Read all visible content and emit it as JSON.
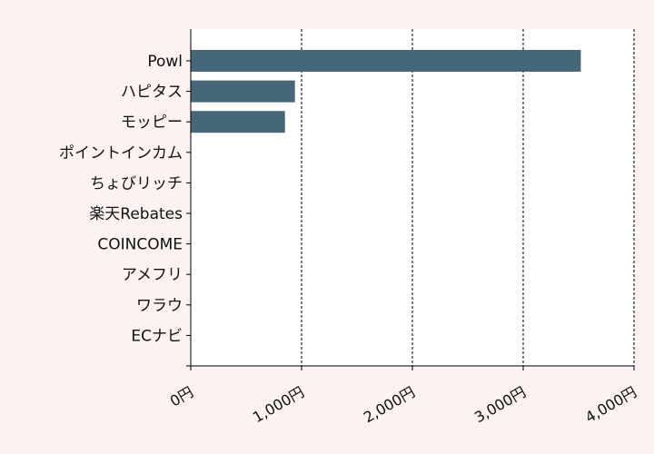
{
  "chart_data": {
    "type": "bar",
    "orientation": "horizontal",
    "categories": [
      "Powl",
      "ハピタス",
      "モッピー",
      "ポイントインカム",
      "ちょびリッチ",
      "楽天Rebates",
      "COINCOME",
      "アメフリ",
      "ワラウ",
      "ECナビ"
    ],
    "values": [
      3520,
      940,
      850,
      0,
      0,
      0,
      0,
      0,
      0,
      0
    ],
    "xlim": [
      0,
      4000
    ],
    "xticks": [
      0,
      1000,
      2000,
      3000,
      4000
    ],
    "xtick_labels": [
      "0円",
      "1,000円",
      "2,000円",
      "3,000円",
      "4,000円"
    ],
    "grid": "x-dashed",
    "bar_color": "#456779",
    "plot_background": "#ffffff",
    "page_background": "#fdf2f2",
    "title": "",
    "xlabel": "",
    "ylabel": ""
  }
}
